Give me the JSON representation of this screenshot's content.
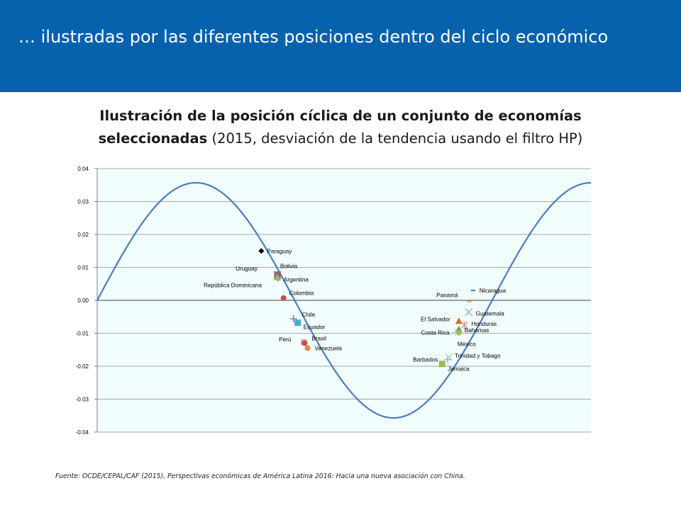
{
  "header": {
    "title": "… ilustradas por las diferentes posiciones dentro del ciclo económico"
  },
  "chart_title": {
    "line1": "Ilustración de la posición cíclica de un conjunto de economías",
    "line2_bold": "seleccionadas",
    "line2_rest": " (2015, desviación de la tendencia usando el filtro HP)"
  },
  "source": "Fuente: OCDE/CEPAL/CAF (2015), Perspectivas económicas de América Latina 2016: Hacia una nueva asociación con China.",
  "colors": {
    "header_bg": "#0762ae",
    "plot_bg": "#f1fcfd",
    "curve": "#4a7ebb",
    "grid": "#7f7f7f"
  },
  "chart_data": {
    "type": "scatter",
    "xlim": [
      1,
      81
    ],
    "ylim": [
      -0.04,
      0.04
    ],
    "yticks": [
      "0.04",
      "0.03",
      "0.02",
      "0.01",
      "0.00",
      "-0.01",
      "-0.02",
      "-0.03",
      "-0.04"
    ],
    "grid": true,
    "legend": "none",
    "curve": {
      "amplitude": 0.0357,
      "period": 64,
      "peak_x": 17,
      "start_x": 1,
      "end_x": 81
    },
    "points": [
      {
        "label": "Paraguay",
        "x": 27.6,
        "y": 0.015,
        "marker": "diamond",
        "color": "#000000"
      },
      {
        "label": "Bolivia",
        "x": 30.2,
        "y": 0.0078,
        "marker": "square",
        "color": "#c0504d"
      },
      {
        "label": "Uruguay",
        "x": 30.2,
        "y": 0.0077,
        "marker": "x",
        "color": "#4f81bd"
      },
      {
        "label": "Argentina",
        "x": 30.3,
        "y": 0.0066,
        "marker": "diamond",
        "color": "#7f5fa0"
      },
      {
        "label": "República Dominicana",
        "x": 30.2,
        "y": 0.007,
        "marker": "triangle",
        "color": "#9bbb59"
      },
      {
        "label": "Colombia",
        "x": 31.2,
        "y": 0.0007,
        "marker": "circle",
        "color": "#c0504d"
      },
      {
        "label": "Chile",
        "x": 32.8,
        "y": -0.0056,
        "marker": "plus",
        "color": "#4f81bd"
      },
      {
        "label": "Ecuador",
        "x": 33.5,
        "y": -0.0068,
        "marker": "square",
        "color": "#4bacc6"
      },
      {
        "label": "Perú",
        "x": 34.5,
        "y": -0.0127,
        "marker": "square",
        "color": "#e6b9b8"
      },
      {
        "label": "Brasil",
        "x": 34.6,
        "y": -0.013,
        "marker": "circle",
        "color": "#c0504d"
      },
      {
        "label": "Venezuela",
        "x": 35.1,
        "y": -0.0145,
        "marker": "circle",
        "color": "#e08a40"
      },
      {
        "label": "Nicaragua",
        "x": 61.9,
        "y": 0.003,
        "marker": "dash",
        "color": "#4f81bd"
      },
      {
        "label": "Panamá",
        "x": 61.3,
        "y": -0.0003,
        "marker": "dash",
        "color": "#f79646"
      },
      {
        "label": "Guatemala",
        "x": 61.2,
        "y": -0.0036,
        "marker": "x",
        "color": "#95b3d7"
      },
      {
        "label": "El Salvador",
        "x": 59.6,
        "y": -0.0063,
        "marker": "triangle",
        "color": "#e36c09"
      },
      {
        "label": "Honduras",
        "x": 60.5,
        "y": -0.0075,
        "marker": "asterisk",
        "color": "#d99694"
      },
      {
        "label": "Bahamas",
        "x": 59.6,
        "y": -0.0088,
        "marker": "triangle",
        "color": "#77933c"
      },
      {
        "label": "Costa Rica",
        "x": 59.0,
        "y": -0.0098,
        "marker": "plus",
        "color": "#b7dde8"
      },
      {
        "label": "México",
        "x": 59.6,
        "y": -0.0098,
        "marker": "circle",
        "color": "#9bbb59"
      },
      {
        "label": "Trinidad y Tobago",
        "x": 58.0,
        "y": -0.0172,
        "marker": "x",
        "color": "#c4d79b"
      },
      {
        "label": "Barbados",
        "x": 56.9,
        "y": -0.0193,
        "marker": "square",
        "color": "#9bbb59"
      },
      {
        "label": "Jamaica",
        "x": 57.8,
        "y": -0.018,
        "marker": "plus",
        "color": "#8db3e2"
      }
    ]
  }
}
